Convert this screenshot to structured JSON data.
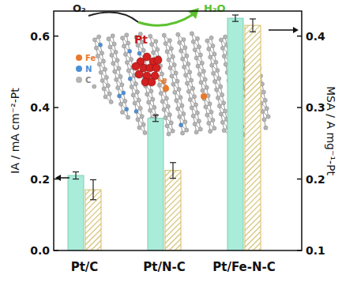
{
  "chart_data": {
    "type": "bar",
    "categories": [
      "Pt/C",
      "Pt/N-C",
      "Pt/Fe-N-C"
    ],
    "y_label": "IA / mA cm⁻²-Pt",
    "y2_label": "MSA / A mg⁻¹-Pt",
    "ylim": [
      0,
      0.67
    ],
    "yticks": [
      {
        "value": 0,
        "label": "0.0"
      },
      0.2,
      0.4,
      0.6
    ],
    "y2lim": [
      0.1,
      0.435
    ],
    "y2ticks": [
      0.1,
      0.2,
      0.3,
      0.4
    ],
    "series": [
      {
        "color": "#a8ecd9",
        "values": [
          0.21,
          0.37,
          0.65
        ],
        "errors": [
          0.01,
          0.009,
          0.009
        ]
      },
      {
        "color": "#d2bb66",
        "axis": "y2",
        "values": [
          0.185,
          0.212,
          0.415
        ],
        "errors": [
          0.014,
          0.011,
          0.009
        ]
      }
    ],
    "annotations": [
      {
        "text": "O₂"
      },
      {
        "text": "H₂O"
      },
      {
        "text": "Pt"
      },
      {
        "text": "e"
      },
      {
        "text": "Fe"
      },
      {
        "text": "N"
      },
      {
        "text": "C"
      }
    ]
  }
}
